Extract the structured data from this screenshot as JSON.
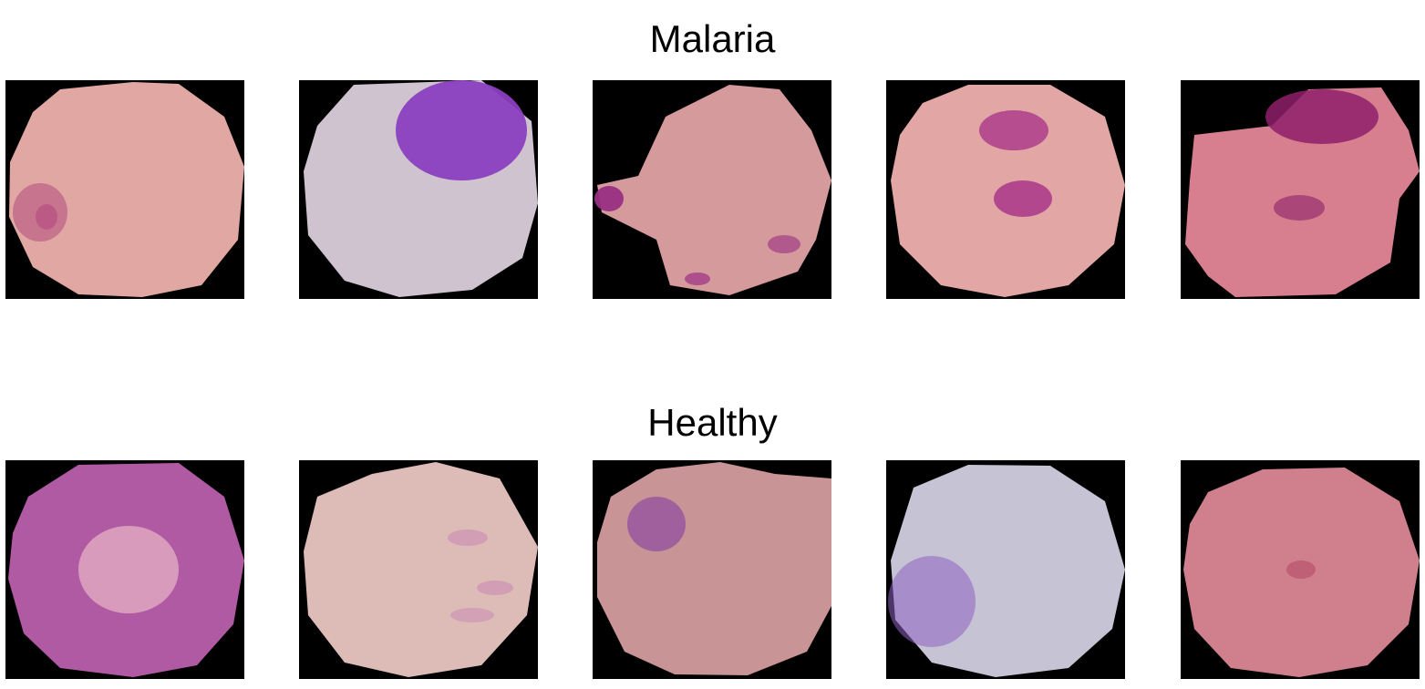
{
  "sections": [
    {
      "title": "Malaria",
      "cells": [
        {
          "icon": "blood-cell-image",
          "cell_color": "#e0a7a3",
          "stain_color": "#b34b7e"
        },
        {
          "icon": "blood-cell-image",
          "cell_color": "#cfc3cf",
          "stain_color": "#8a3fc0"
        },
        {
          "icon": "blood-cell-image",
          "cell_color": "#d59a9c",
          "stain_color": "#9a2f84"
        },
        {
          "icon": "blood-cell-image",
          "cell_color": "#e2a6a4",
          "stain_color": "#a62f88"
        },
        {
          "icon": "blood-cell-image",
          "cell_color": "#d77f8e",
          "stain_color": "#8e1f6a"
        }
      ]
    },
    {
      "title": "Healthy",
      "cells": [
        {
          "icon": "blood-cell-image",
          "cell_color": "#b15aa4",
          "stain_color": "#e8b7c6"
        },
        {
          "icon": "blood-cell-image",
          "cell_color": "#ddbcb8",
          "stain_color": "#c98bb2"
        },
        {
          "icon": "blood-cell-image",
          "cell_color": "#c89496",
          "stain_color": "#8d4a9f"
        },
        {
          "icon": "blood-cell-image",
          "cell_color": "#c6c3d4",
          "stain_color": "#8e63c3"
        },
        {
          "icon": "blood-cell-image",
          "cell_color": "#d07f8c",
          "stain_color": "#b8526c"
        }
      ]
    }
  ]
}
